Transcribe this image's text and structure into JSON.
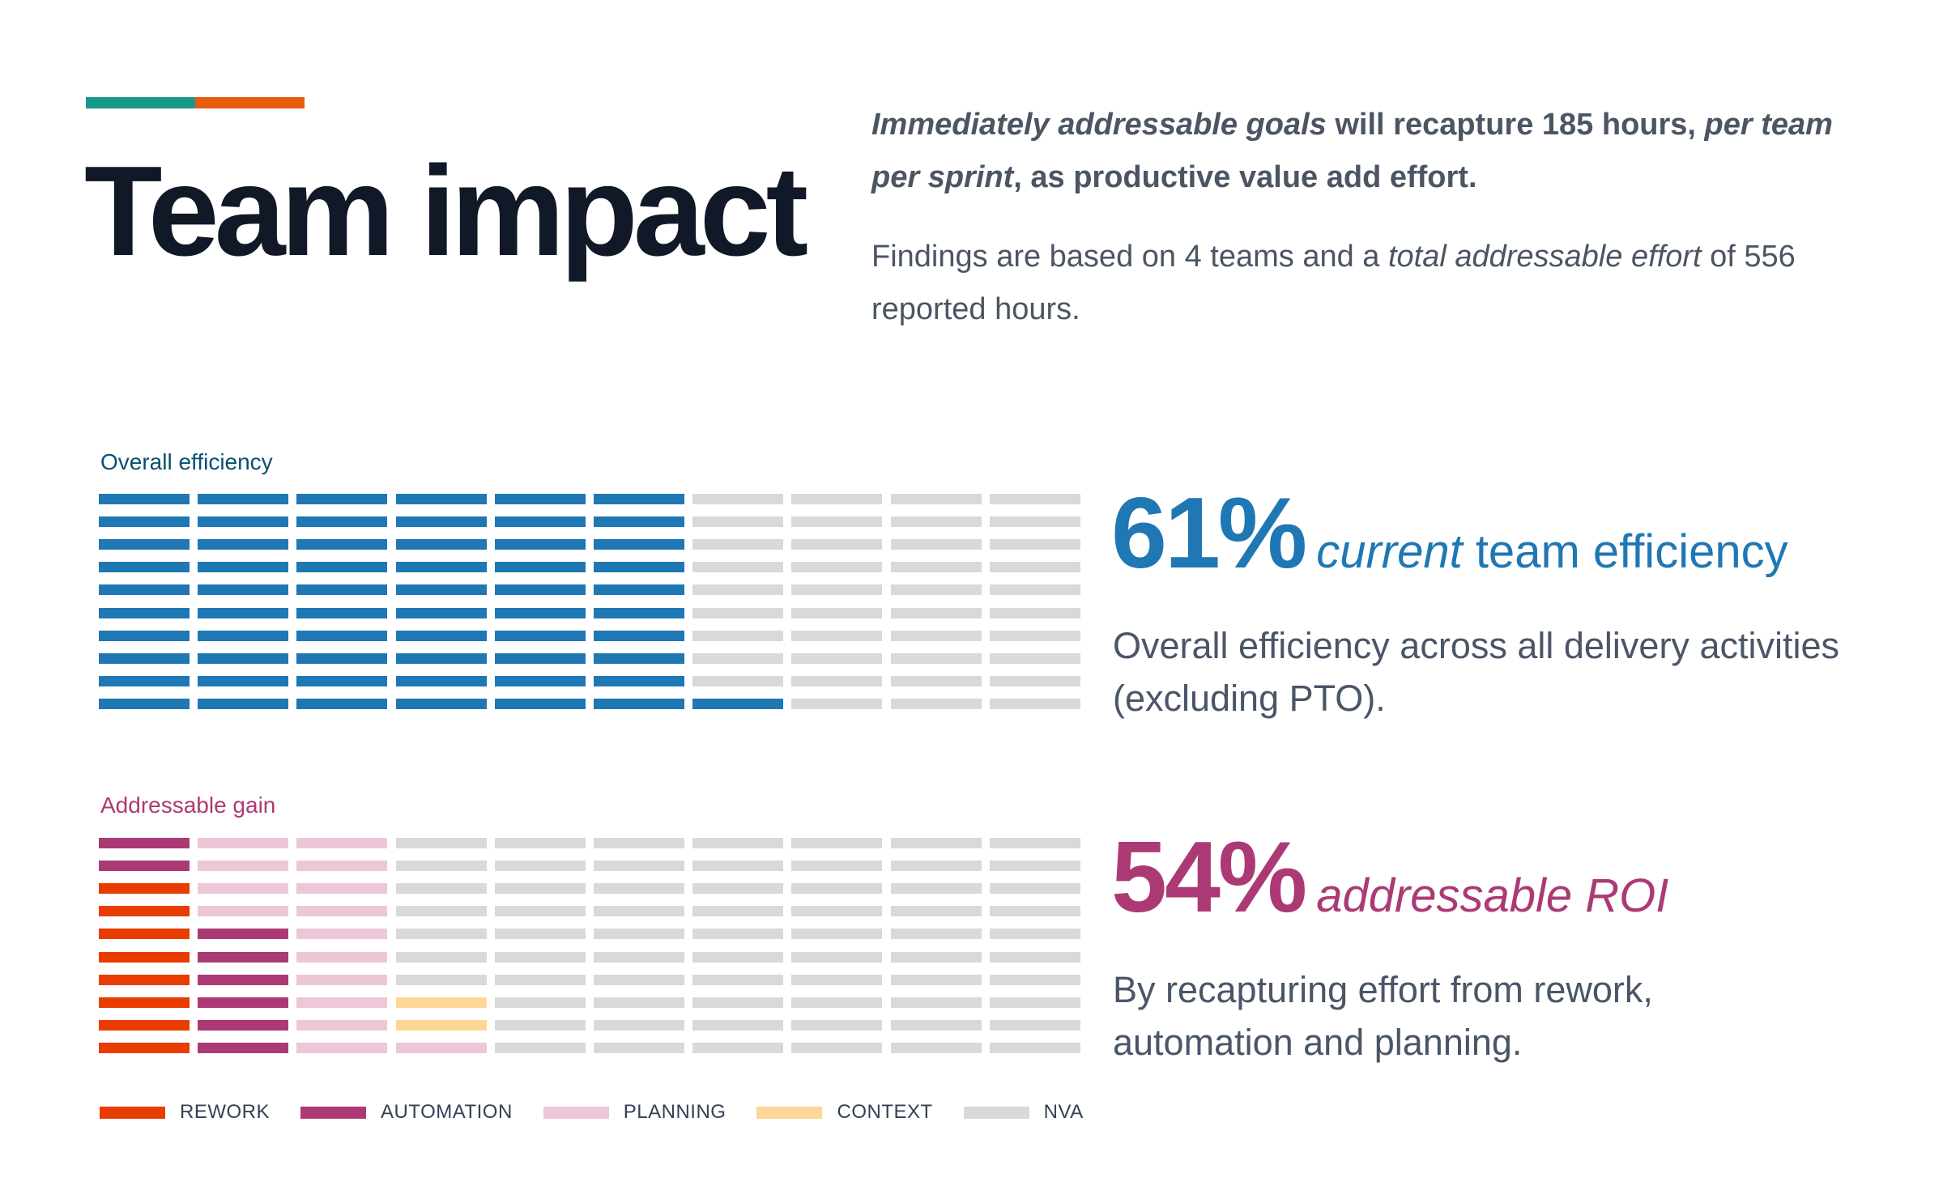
{
  "colors": {
    "teal": "#17998a",
    "orange": "#e85a0c",
    "efficiency": "#1f77b4",
    "nva": "#d9d9d9",
    "rework": "#e83c00",
    "automation": "#ab3a74",
    "planning": "#ecc7d8",
    "context": "#fdd798",
    "gain_label": "#ad3a73",
    "eff_label": "#0b4f71"
  },
  "header": {
    "title": "Team impact"
  },
  "intro": {
    "p1": [
      {
        "t": "Immediately addressable goals",
        "i": true
      },
      {
        "t": " will recapture 185 hours, ",
        "i": false
      },
      {
        "t": "per team per sprint",
        "i": true
      },
      {
        "t": ", as productive value add effort.",
        "i": false
      }
    ],
    "p2": [
      {
        "t": "Findings are based on 4 teams and a ",
        "i": false
      },
      {
        "t": "total addressable effort",
        "i": true
      },
      {
        "t": " of 556 reported hours.",
        "i": false
      }
    ]
  },
  "efficiency": {
    "label": "Overall efficiency",
    "value": "61%",
    "sub_italic": "current",
    "sub_rest": " team efficiency",
    "description": "Overall efficiency across all delivery activities (excluding PTO)."
  },
  "gain": {
    "label": "Addressable gain",
    "value": "54%",
    "sub_italic": "addressable ROI",
    "description": "By recapturing effort from rework, automation and planning."
  },
  "chart_data": [
    {
      "type": "waffle",
      "title": "Overall efficiency",
      "value_percent": 61,
      "categories": {
        "E": "efficiency",
        "N": "nva"
      },
      "rows": [
        "EEEEEENNNN",
        "EEEEEENNNN",
        "EEEEEENNNN",
        "EEEEEENNNN",
        "EEEEEENNNN",
        "EEEEEENNNN",
        "EEEEEENNNN",
        "EEEEEENNNN",
        "EEEEEENNNN",
        "EEEEEEENNN"
      ]
    },
    {
      "type": "waffle",
      "title": "Addressable gain",
      "value_percent": 54,
      "categories": {
        "R": "rework",
        "A": "automation",
        "P": "planning",
        "C": "context",
        "N": "nva"
      },
      "rows": [
        "APPNNNNNNN",
        "APPNNNNNNN",
        "RPPNNNNNNN",
        "RPPNNNNNNN",
        "RAPNNNNNNN",
        "RAPNNNNNNN",
        "RAPNNNNNNN",
        "RAPCNNNNNN",
        "RAPCNNNNNN",
        "RAPPNNNNNN"
      ],
      "legend": [
        {
          "key": "rework",
          "label": "REWORK"
        },
        {
          "key": "automation",
          "label": "AUTOMATION"
        },
        {
          "key": "planning",
          "label": "PLANNING"
        },
        {
          "key": "context",
          "label": "CONTEXT"
        },
        {
          "key": "nva",
          "label": "NVA"
        }
      ]
    }
  ]
}
